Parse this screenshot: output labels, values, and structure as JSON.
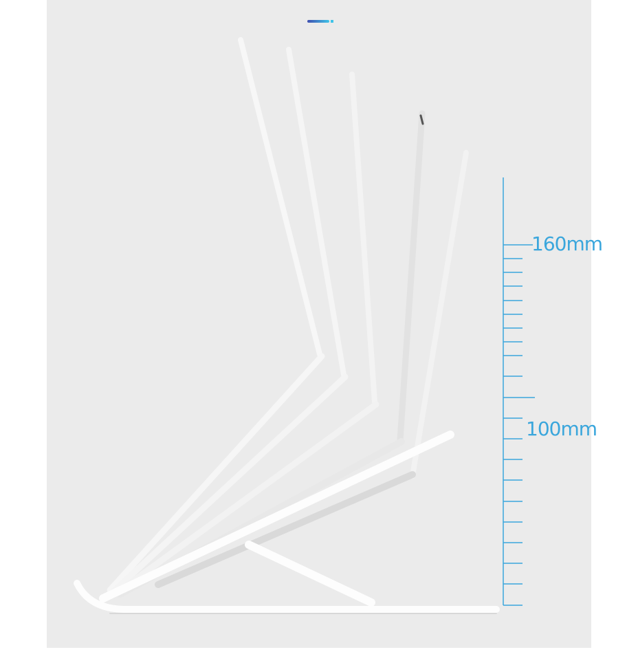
{
  "product_image": {
    "subject": "laptop-stand",
    "ruler": {
      "labels": [
        "160mm",
        "100mm"
      ],
      "color": "#3aa6dc"
    },
    "accent_bar_colors": [
      "#3f4fb0",
      "#3fc3e8"
    ],
    "background_color": "#ebebeb"
  }
}
